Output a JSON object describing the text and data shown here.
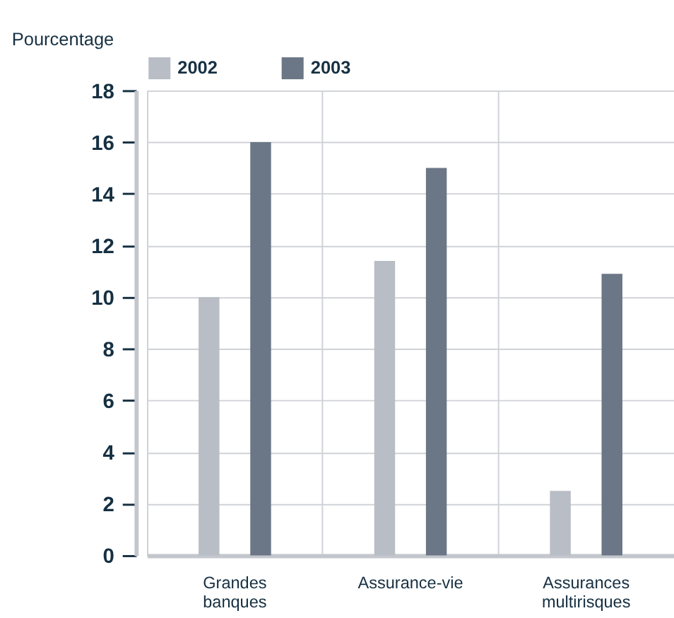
{
  "chart_data": {
    "type": "bar",
    "ylabel": "Pourcentage",
    "categories": [
      "Grandes banques",
      "Assurance-vie",
      "Assurances multirisques"
    ],
    "series": [
      {
        "name": "2002",
        "color": "#b9bdc5",
        "values": [
          10,
          11.4,
          2.5
        ]
      },
      {
        "name": "2003",
        "color": "#6b7686",
        "values": [
          16,
          15,
          10.9
        ]
      }
    ],
    "ylim": [
      0,
      18
    ],
    "yticks": [
      0,
      2,
      4,
      6,
      8,
      10,
      12,
      14,
      16,
      18
    ],
    "grid": true,
    "legend": "top"
  }
}
